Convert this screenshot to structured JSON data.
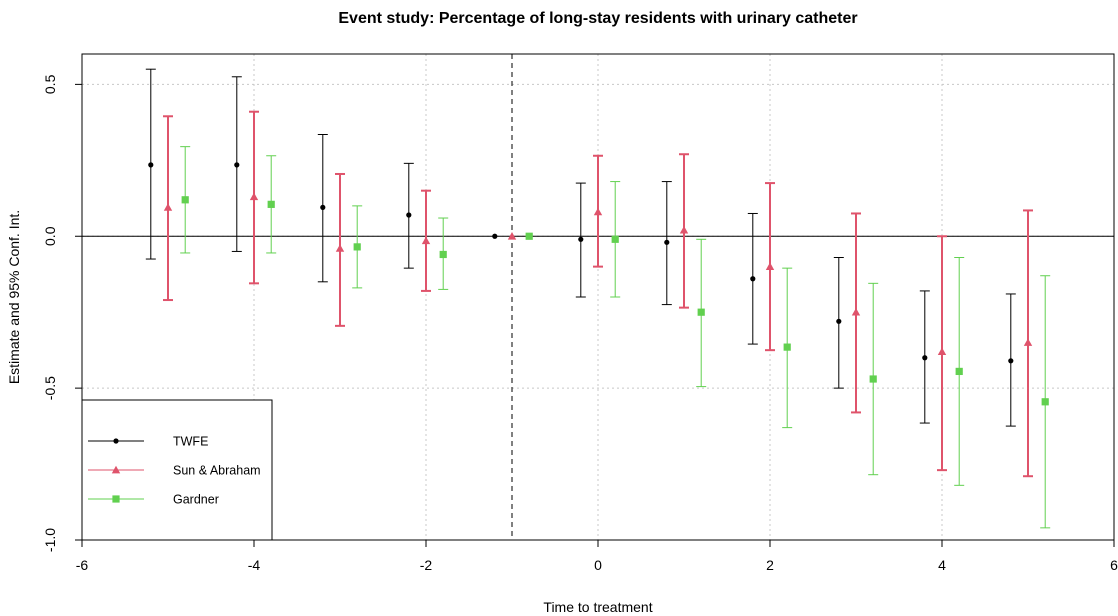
{
  "chart_data": {
    "type": "scatter",
    "title": "Event study: Percentage of long-stay residents with urinary catheter",
    "xlabel": "Time to treatment",
    "ylabel": "Estimate and 95% Conf. Int.",
    "xlim": [
      -6,
      6
    ],
    "ylim": [
      -1.0,
      0.6
    ],
    "xticks": [
      -6,
      -4,
      -2,
      0,
      2,
      4,
      6
    ],
    "yticks": [
      -1.0,
      -0.5,
      0.0,
      0.5
    ],
    "xtick_labels": [
      "-6",
      "-4",
      "-2",
      "0",
      "2",
      "4",
      "6"
    ],
    "ytick_labels": [
      "-1.0",
      "-0.5",
      "0.0",
      "0.5"
    ],
    "grid": true,
    "reference_lines": {
      "hline_y": 0,
      "vline_x": -1
    },
    "legend_position": "bottom-left",
    "series": [
      {
        "name": "TWFE",
        "color": "#000000",
        "marker": "circle",
        "x": [
          -5.2,
          -4.2,
          -3.2,
          -2.2,
          -1.2,
          -0.2,
          0.8,
          1.8,
          2.8,
          3.8,
          4.8
        ],
        "estimate": [
          0.235,
          0.235,
          0.095,
          0.07,
          0.0,
          -0.01,
          -0.02,
          -0.14,
          -0.28,
          -0.4,
          -0.41
        ],
        "ci_low": [
          -0.075,
          -0.05,
          -0.15,
          -0.105,
          0.0,
          -0.2,
          -0.225,
          -0.355,
          -0.5,
          -0.615,
          -0.625
        ],
        "ci_high": [
          0.55,
          0.525,
          0.335,
          0.24,
          0.0,
          0.175,
          0.18,
          0.075,
          -0.07,
          -0.18,
          -0.19
        ]
      },
      {
        "name": "Sun & Abraham",
        "color": "#DF536B",
        "marker": "triangle",
        "x": [
          -5.0,
          -4.0,
          -3.0,
          -2.0,
          -1.0,
          0.0,
          1.0,
          2.0,
          3.0,
          4.0,
          5.0
        ],
        "estimate": [
          0.095,
          0.13,
          -0.04,
          -0.015,
          0.0,
          0.08,
          0.02,
          -0.1,
          -0.25,
          -0.38,
          -0.35
        ],
        "ci_low": [
          -0.21,
          -0.155,
          -0.295,
          -0.18,
          0.0,
          -0.1,
          -0.235,
          -0.375,
          -0.58,
          -0.77,
          -0.79
        ],
        "ci_high": [
          0.395,
          0.41,
          0.205,
          0.15,
          0.0,
          0.265,
          0.27,
          0.175,
          0.075,
          0.0,
          0.085
        ]
      },
      {
        "name": "Gardner",
        "color": "#61D04F",
        "marker": "square",
        "x": [
          -4.8,
          -3.8,
          -2.8,
          -1.8,
          -0.8,
          0.2,
          1.2,
          2.2,
          3.2,
          4.2,
          5.2
        ],
        "estimate": [
          0.12,
          0.105,
          -0.035,
          -0.06,
          0.0,
          -0.01,
          -0.25,
          -0.365,
          -0.47,
          -0.445,
          -0.545
        ],
        "ci_low": [
          -0.055,
          -0.055,
          -0.17,
          -0.175,
          0.0,
          -0.2,
          -0.495,
          -0.63,
          -0.785,
          -0.82,
          -0.96
        ],
        "ci_high": [
          0.295,
          0.265,
          0.1,
          0.06,
          0.0,
          0.18,
          -0.01,
          -0.105,
          -0.155,
          -0.07,
          -0.13
        ]
      }
    ]
  }
}
